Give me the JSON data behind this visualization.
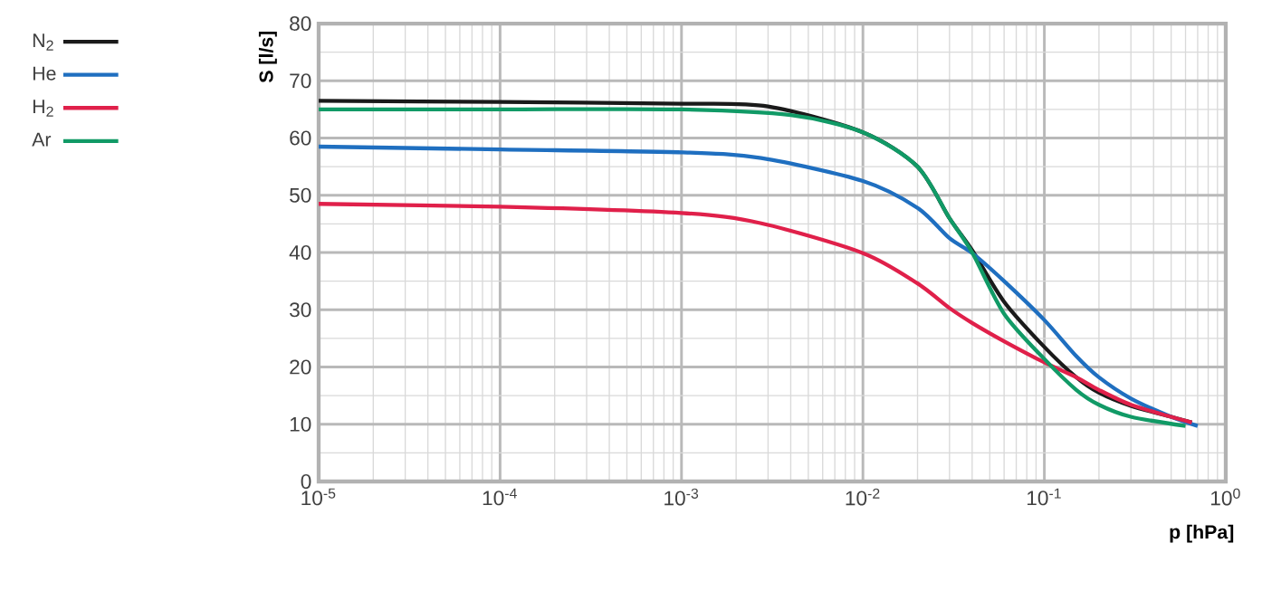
{
  "chart_data": {
    "type": "line",
    "xlabel": "p [hPa]",
    "ylabel": "S [l/s]",
    "log": "x",
    "grid": true,
    "legend": "left",
    "line_style": "solid",
    "marker": "none",
    "xlim": [
      1e-05,
      1
    ],
    "ylim": [
      0,
      80
    ],
    "xticks": [
      {
        "value": 1e-05,
        "label": "10$^{-5}$"
      },
      {
        "value": 0.0001,
        "label": "10$^{-4}$"
      },
      {
        "value": 0.001,
        "label": "10$^{-3}$"
      },
      {
        "value": 0.01,
        "label": "10$^{-2}$"
      },
      {
        "value": 0.1,
        "label": "10$^{-1}$"
      },
      {
        "value": 1,
        "label": "10$^{0}$"
      }
    ],
    "yticks": [
      0,
      10,
      20,
      30,
      40,
      50,
      60,
      70,
      80
    ],
    "series": [
      {
        "name": "N$_{2}$",
        "color": "#1a1a1a",
        "x": [
          1e-05,
          0.0001,
          0.001,
          0.003,
          0.01,
          0.02,
          0.03,
          0.04,
          0.06,
          0.1,
          0.15,
          0.2,
          0.3,
          0.5,
          0.65
        ],
        "values": [
          66.5,
          66.3,
          66,
          65.5,
          61,
          55,
          46,
          40.4,
          31.4,
          23.5,
          18.2,
          15.5,
          13.2,
          11.3,
          10.3
        ]
      },
      {
        "name": "He",
        "color": "#1f6fc0",
        "x": [
          1e-05,
          0.0001,
          0.001,
          0.00275,
          0.01,
          0.02,
          0.03,
          0.04,
          0.06,
          0.1,
          0.15,
          0.2,
          0.3,
          0.5,
          0.7
        ],
        "values": [
          58.5,
          58,
          57.5,
          56.5,
          52.5,
          47.8,
          42.5,
          39.9,
          35,
          28.2,
          21.9,
          18.2,
          14.5,
          11.3,
          9.7
        ]
      },
      {
        "name": "H$_{2}$",
        "color": "#e0204a",
        "x": [
          1e-05,
          0.0001,
          0.001,
          0.00275,
          0.01,
          0.02,
          0.03,
          0.04,
          0.06,
          0.1,
          0.15,
          0.2,
          0.3,
          0.5,
          0.65
        ],
        "values": [
          48.5,
          48,
          46.9,
          45.1,
          39.9,
          34.6,
          30.3,
          27.7,
          24.5,
          20.8,
          18.2,
          16,
          13.4,
          11.3,
          10.3
        ]
      },
      {
        "name": "Ar",
        "color": "#119a66",
        "x": [
          1e-05,
          0.0001,
          0.001,
          0.004,
          0.01,
          0.02,
          0.03,
          0.04,
          0.06,
          0.1,
          0.15,
          0.2,
          0.3,
          0.6
        ],
        "values": [
          65,
          65,
          65,
          64,
          61,
          55,
          46,
          40,
          29.3,
          21.4,
          16,
          13.4,
          11.3,
          9.7
        ]
      }
    ]
  }
}
